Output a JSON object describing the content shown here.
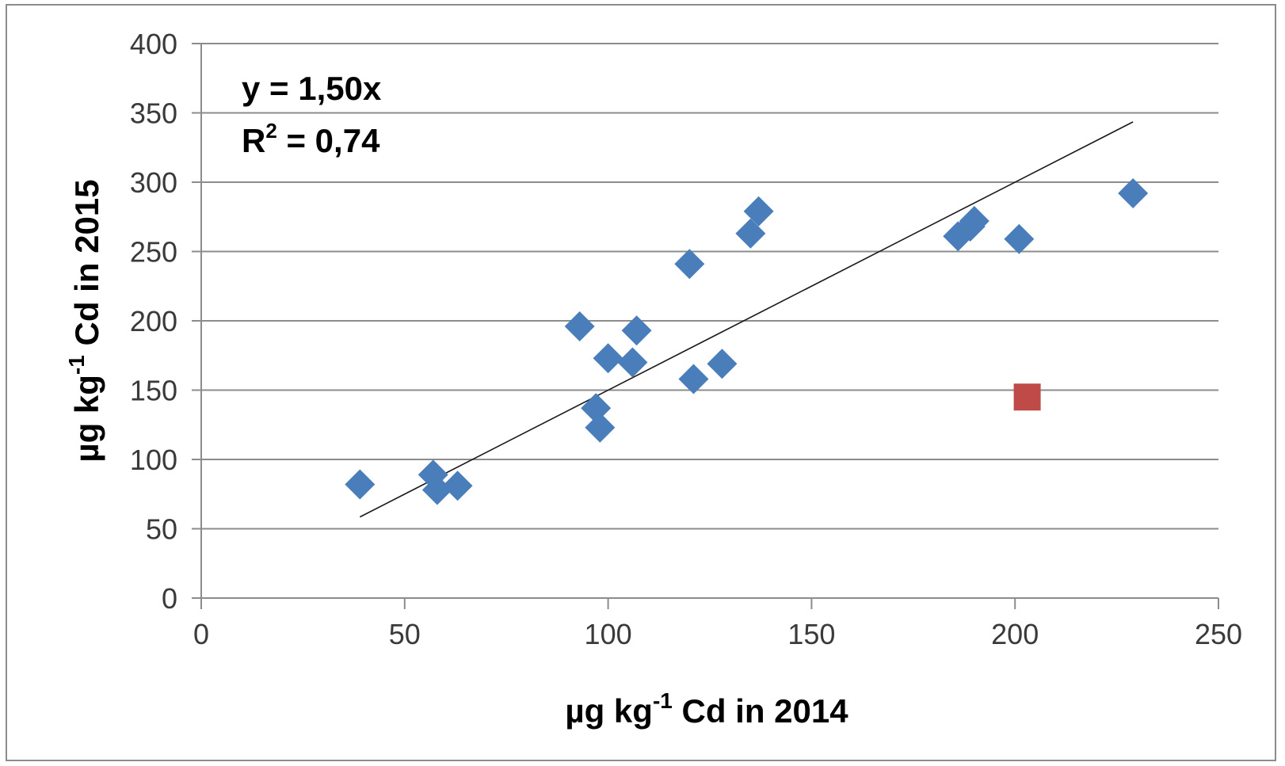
{
  "chart_data": {
    "type": "scatter",
    "title": "",
    "xlabel_parts": [
      "µg kg",
      "-1",
      " Cd in 2014"
    ],
    "ylabel_parts": [
      "µg kg",
      "-1",
      " Cd in 2015"
    ],
    "xlim": [
      0,
      250
    ],
    "ylim": [
      0,
      400
    ],
    "x_ticks": [
      "0",
      "50",
      "100",
      "150",
      "200",
      "250"
    ],
    "y_ticks": [
      "0",
      "50",
      "100",
      "150",
      "200",
      "250",
      "300",
      "350",
      "400"
    ],
    "x_tick_values": [
      0,
      50,
      100,
      150,
      200,
      250
    ],
    "y_tick_values": [
      0,
      50,
      100,
      150,
      200,
      250,
      300,
      350,
      400
    ],
    "grid": true,
    "annotations": {
      "equation": "y = 1,50x",
      "r_squared_base": "R",
      "r_squared_sup": "2",
      "r_squared_rest": " = 0,74"
    },
    "trendline": {
      "slope": 1.5,
      "x_range": [
        39,
        229
      ]
    },
    "series": [
      {
        "marker": "diamond",
        "color": "#4a7ebb",
        "points": [
          [
            39,
            82
          ],
          [
            57,
            89
          ],
          [
            58,
            78
          ],
          [
            63,
            81
          ],
          [
            93,
            196
          ],
          [
            97,
            137
          ],
          [
            98,
            123
          ],
          [
            100,
            173
          ],
          [
            106,
            170
          ],
          [
            107,
            193
          ],
          [
            120,
            241
          ],
          [
            121,
            158
          ],
          [
            128,
            169
          ],
          [
            135,
            263
          ],
          [
            137,
            279
          ],
          [
            186,
            261
          ],
          [
            189,
            268
          ],
          [
            190,
            272
          ],
          [
            201,
            259
          ],
          [
            229,
            292
          ]
        ]
      },
      {
        "marker": "square",
        "color": "#be4b48",
        "points": [
          [
            203,
            145
          ]
        ]
      }
    ]
  }
}
